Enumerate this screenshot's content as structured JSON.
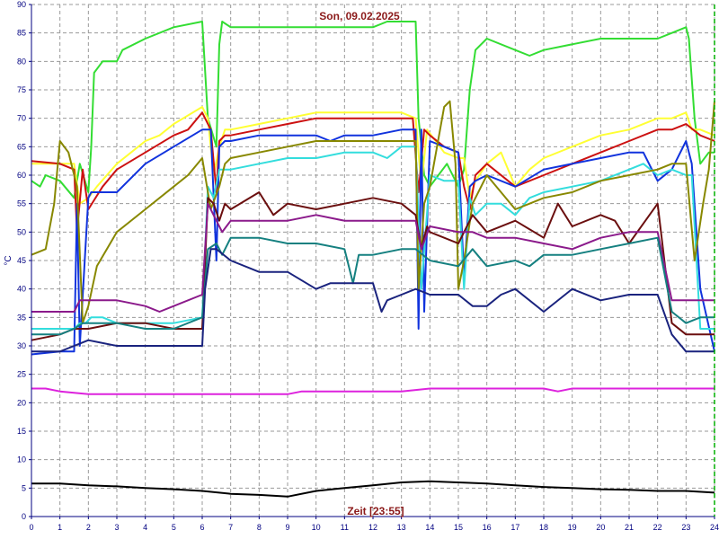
{
  "chart_data": {
    "type": "line",
    "title": "Son, 09.02.2025",
    "xlabel": "Zeit [23:55]",
    "ylabel": "°C",
    "xlim": [
      0,
      24
    ],
    "ylim": [
      0,
      90
    ],
    "xticks": [
      0,
      1,
      2,
      3,
      4,
      5,
      6,
      7,
      8,
      9,
      10,
      11,
      12,
      13,
      14,
      15,
      16,
      17,
      18,
      19,
      20,
      21,
      22,
      23,
      24
    ],
    "yticks": [
      0,
      5,
      10,
      15,
      20,
      25,
      30,
      35,
      40,
      45,
      50,
      55,
      60,
      65,
      70,
      75,
      80,
      85,
      90
    ],
    "grid": true,
    "colors": {
      "axis": "#000080",
      "grid": "#9a9a9a",
      "title": "#8b1a1a",
      "end_marker": "#00b000"
    },
    "series": [
      {
        "color": "#33dd33",
        "x": [
          0,
          0.3,
          0.5,
          1,
          1.5,
          1.7,
          2,
          2.1,
          2.2,
          2.5,
          3,
          3.2,
          4,
          5,
          6,
          6.2,
          6.5,
          6.6,
          6.7,
          7,
          8,
          9,
          10,
          11,
          12,
          12.5,
          13,
          13.5,
          13.6,
          13.8,
          14,
          14.3,
          14.6,
          15,
          15.2,
          15.4,
          15.6,
          16,
          17,
          17.5,
          18,
          19,
          20,
          21,
          22,
          22.5,
          23,
          23.1,
          23.3,
          23.5,
          23.8,
          24
        ],
        "y": [
          59,
          58,
          60,
          59,
          56,
          62,
          57,
          65,
          78,
          80,
          80,
          82,
          84,
          86,
          87,
          70,
          65,
          83,
          87,
          86,
          86,
          86,
          86,
          86,
          86,
          87,
          87,
          87,
          70,
          60,
          58,
          60,
          62,
          58,
          61,
          75,
          82,
          84,
          82,
          81,
          82,
          83,
          84,
          84,
          84,
          85,
          86,
          84,
          70,
          62,
          64,
          64
        ]
      },
      {
        "color": "#ffff33",
        "x": [
          0,
          1,
          1.5,
          1.7,
          2,
          2.3,
          3,
          4,
          4.5,
          5,
          6,
          6.2,
          6.4,
          6.6,
          6.8,
          7,
          8,
          9,
          10,
          11,
          12,
          13,
          13.5,
          13.7,
          13.9,
          14.5,
          15,
          15.2,
          15.4,
          15.6,
          16,
          16.5,
          17,
          17.5,
          18,
          19,
          20,
          21,
          22,
          22.5,
          23,
          23.2,
          23.5,
          24
        ],
        "y": [
          62,
          62,
          62,
          55,
          56,
          58,
          62,
          66,
          67,
          69,
          72,
          70,
          60,
          65,
          68,
          68,
          69,
          70,
          71,
          71,
          71,
          71,
          70,
          58,
          68,
          64,
          63,
          63,
          56,
          59,
          62,
          64,
          58,
          61,
          63,
          65,
          67,
          68,
          70,
          70,
          71,
          68,
          68,
          67
        ]
      },
      {
        "color": "#cc1111",
        "x": [
          0,
          1,
          1.5,
          1.6,
          1.8,
          2,
          2.5,
          3,
          4,
          5,
          5.5,
          6,
          6.3,
          6.5,
          6.6,
          6.8,
          7,
          8,
          9,
          10,
          11,
          12,
          13,
          13.4,
          13.6,
          13.8,
          14,
          14.5,
          15,
          15.2,
          15.4,
          15.6,
          16,
          17,
          18,
          19,
          20,
          21,
          22,
          22.5,
          23,
          23.5,
          24
        ],
        "y": [
          62.5,
          62,
          61,
          50,
          61,
          54,
          58,
          61,
          64,
          67,
          68,
          71,
          68,
          57,
          66,
          67,
          67,
          68,
          69,
          70,
          70,
          70,
          70,
          70,
          57,
          68,
          67,
          65,
          64,
          58,
          54,
          60,
          62,
          58,
          60,
          62,
          64,
          66,
          68,
          68,
          69,
          67,
          66
        ]
      },
      {
        "color": "#1133dd",
        "x": [
          0,
          1,
          1.5,
          1.6,
          1.7,
          2,
          2.1,
          3,
          4,
          5,
          6,
          6.3,
          6.5,
          6.6,
          6.8,
          7,
          8,
          9,
          10,
          10.5,
          11,
          12,
          13,
          13.5,
          13.6,
          13.7,
          13.8,
          14,
          14.5,
          15,
          15.2,
          15.4,
          15.6,
          16,
          17,
          18,
          19,
          20,
          21,
          21.5,
          22,
          22.5,
          23,
          23.2,
          23.5,
          24
        ],
        "y": [
          28.5,
          29,
          29,
          55,
          30,
          56,
          57,
          57,
          62,
          65,
          68,
          68,
          45,
          65,
          66,
          66,
          67,
          67,
          67,
          66,
          67,
          67,
          68,
          68,
          33,
          68,
          36,
          66,
          65,
          64,
          42,
          58,
          59,
          60,
          58,
          61,
          62,
          63,
          64,
          64,
          59,
          61,
          66,
          62,
          40,
          29
        ]
      },
      {
        "color": "#33dddd",
        "x": [
          0,
          1,
          1.5,
          1.7,
          1.9,
          2.1,
          2.5,
          3,
          4,
          5,
          6,
          6.2,
          6.4,
          6.6,
          6.8,
          7,
          8,
          9,
          10,
          11,
          12,
          12.5,
          13,
          13.5,
          13.7,
          14,
          14.5,
          15,
          15.2,
          15.4,
          15.6,
          16,
          16.5,
          17,
          17.5,
          18,
          19,
          20,
          21,
          21.5,
          22,
          22.5,
          23,
          23.2,
          23.5,
          24
        ],
        "y": [
          33,
          33,
          33,
          34,
          34,
          35,
          35,
          34,
          34,
          34,
          35,
          58,
          56,
          61,
          61,
          61,
          62,
          63,
          63,
          64,
          64,
          63,
          65,
          65,
          40,
          60,
          59,
          59,
          40,
          56,
          53,
          55,
          55,
          53,
          56,
          57,
          58,
          59,
          61,
          62,
          60,
          61,
          60,
          60,
          33,
          33
        ]
      },
      {
        "color": "#888800",
        "x": [
          0,
          0.5,
          0.8,
          1,
          1.3,
          1.6,
          1.8,
          2,
          2.3,
          3,
          4,
          5,
          5.5,
          6,
          6.3,
          6.6,
          6.8,
          7,
          8,
          9,
          10,
          11,
          12,
          13,
          13.5,
          13.6,
          13.8,
          14,
          14.5,
          14.7,
          14.9,
          15,
          15.2,
          15.5,
          16,
          16.5,
          17,
          17.5,
          18,
          19,
          20,
          21,
          22,
          22.5,
          23,
          23.3,
          23.6,
          23.8,
          24
        ],
        "y": [
          46,
          47,
          55,
          66,
          64,
          58,
          34,
          37,
          44,
          50,
          54,
          58,
          60,
          63,
          54,
          58,
          62,
          63,
          64,
          65,
          66,
          66,
          66,
          66,
          66,
          40,
          55,
          58,
          72,
          73,
          62,
          40,
          45,
          55,
          60,
          57,
          54,
          55,
          56,
          57,
          59,
          60,
          61,
          62,
          62,
          45,
          55,
          61,
          73
        ]
      },
      {
        "color": "#6b0f0f",
        "x": [
          0,
          1,
          1.5,
          1.7,
          2,
          3,
          4,
          5,
          6,
          6.2,
          6.4,
          6.6,
          6.8,
          7,
          8,
          8.5,
          9,
          10,
          11,
          12,
          13,
          13.5,
          13.7,
          13.9,
          14,
          15,
          15.5,
          16,
          17,
          18,
          18.5,
          19,
          20,
          20.5,
          21,
          22,
          22.5,
          23,
          23.5,
          24
        ],
        "y": [
          31,
          32,
          33,
          33,
          33,
          34,
          34,
          33,
          33,
          56,
          55,
          52,
          55,
          54,
          57,
          53,
          55,
          54,
          55,
          56,
          55,
          53,
          47,
          51,
          50,
          48,
          53,
          50,
          52,
          49,
          55,
          51,
          53,
          52,
          48,
          55,
          34,
          32,
          32,
          32
        ]
      },
      {
        "color": "#8b1a8b",
        "x": [
          0,
          1,
          1.5,
          1.7,
          2,
          3,
          4,
          4.5,
          5,
          6,
          6.2,
          6.5,
          6.7,
          7,
          8,
          9,
          10,
          11,
          12,
          13,
          13.5,
          13.7,
          14,
          15,
          15.5,
          16,
          17,
          18,
          19,
          20,
          21,
          22,
          22.5,
          23,
          23.5,
          24
        ],
        "y": [
          36,
          36,
          36,
          38,
          38,
          38,
          37,
          36,
          37,
          39,
          55,
          52,
          50,
          52,
          52,
          52,
          53,
          52,
          52,
          52,
          52,
          47,
          51,
          50,
          50,
          49,
          49,
          48,
          47,
          49,
          50,
          50,
          38,
          38,
          38,
          38
        ]
      },
      {
        "color": "#158080",
        "x": [
          0,
          1,
          1.5,
          1.8,
          2,
          3,
          4,
          5,
          6,
          6.2,
          6.5,
          6.7,
          7,
          8,
          9,
          10,
          11,
          11.3,
          11.5,
          12,
          13,
          13.5,
          14,
          15,
          15.5,
          16,
          17,
          17.5,
          18,
          19,
          20,
          21,
          22,
          22.5,
          23,
          23.5,
          24
        ],
        "y": [
          32,
          32,
          33,
          34,
          34,
          34,
          33,
          33,
          35,
          47,
          48,
          46,
          49,
          49,
          48,
          48,
          47,
          41,
          46,
          46,
          47,
          47,
          45,
          44,
          47,
          44,
          45,
          44,
          46,
          46,
          47,
          48,
          49,
          36,
          34,
          35,
          35
        ]
      },
      {
        "color": "#1a237e",
        "x": [
          0,
          1,
          1.5,
          2,
          3,
          4,
          5,
          6,
          6.1,
          6.3,
          6.5,
          7,
          8,
          9,
          10,
          10.5,
          11,
          12,
          12.3,
          12.5,
          13,
          13.5,
          14,
          14.5,
          15,
          15.5,
          16,
          16.5,
          17,
          18,
          19,
          20,
          21,
          22,
          22.5,
          23,
          23.5,
          24
        ],
        "y": [
          29,
          29,
          30,
          31,
          30,
          30,
          30,
          30,
          40,
          47,
          47,
          45,
          43,
          43,
          40,
          41,
          41,
          41,
          36,
          38,
          39,
          40,
          39,
          39,
          39,
          37,
          37,
          39,
          40,
          36,
          40,
          38,
          39,
          39,
          32,
          29,
          29,
          29
        ]
      },
      {
        "color": "#dd22dd",
        "x": [
          0,
          0.5,
          1,
          2,
          3,
          4,
          5,
          6,
          7,
          8,
          9,
          9.5,
          10,
          11,
          12,
          13,
          14,
          15,
          16,
          17,
          18,
          18.5,
          19,
          20,
          21,
          22,
          23,
          24
        ],
        "y": [
          22.5,
          22.5,
          22,
          21.5,
          21.5,
          21.5,
          21.5,
          21.5,
          21.5,
          21.5,
          21.5,
          22,
          22,
          22,
          22,
          22,
          22.5,
          22.5,
          22.5,
          22.5,
          22.5,
          22,
          22.5,
          22.5,
          22.5,
          22.5,
          22.5,
          22.5
        ]
      },
      {
        "color": "#000000",
        "x": [
          0,
          1,
          2,
          3,
          4,
          5,
          6,
          7,
          8,
          9,
          10,
          11,
          12,
          13,
          14,
          15,
          16,
          17,
          18,
          19,
          20,
          21,
          22,
          23,
          24
        ],
        "y": [
          5.8,
          5.8,
          5.5,
          5.3,
          5,
          4.8,
          4.5,
          4,
          3.8,
          3.5,
          4.5,
          5,
          5.5,
          6,
          6.2,
          6,
          5.8,
          5.5,
          5.2,
          5,
          4.8,
          4.7,
          4.5,
          4.5,
          4.2
        ]
      }
    ]
  }
}
